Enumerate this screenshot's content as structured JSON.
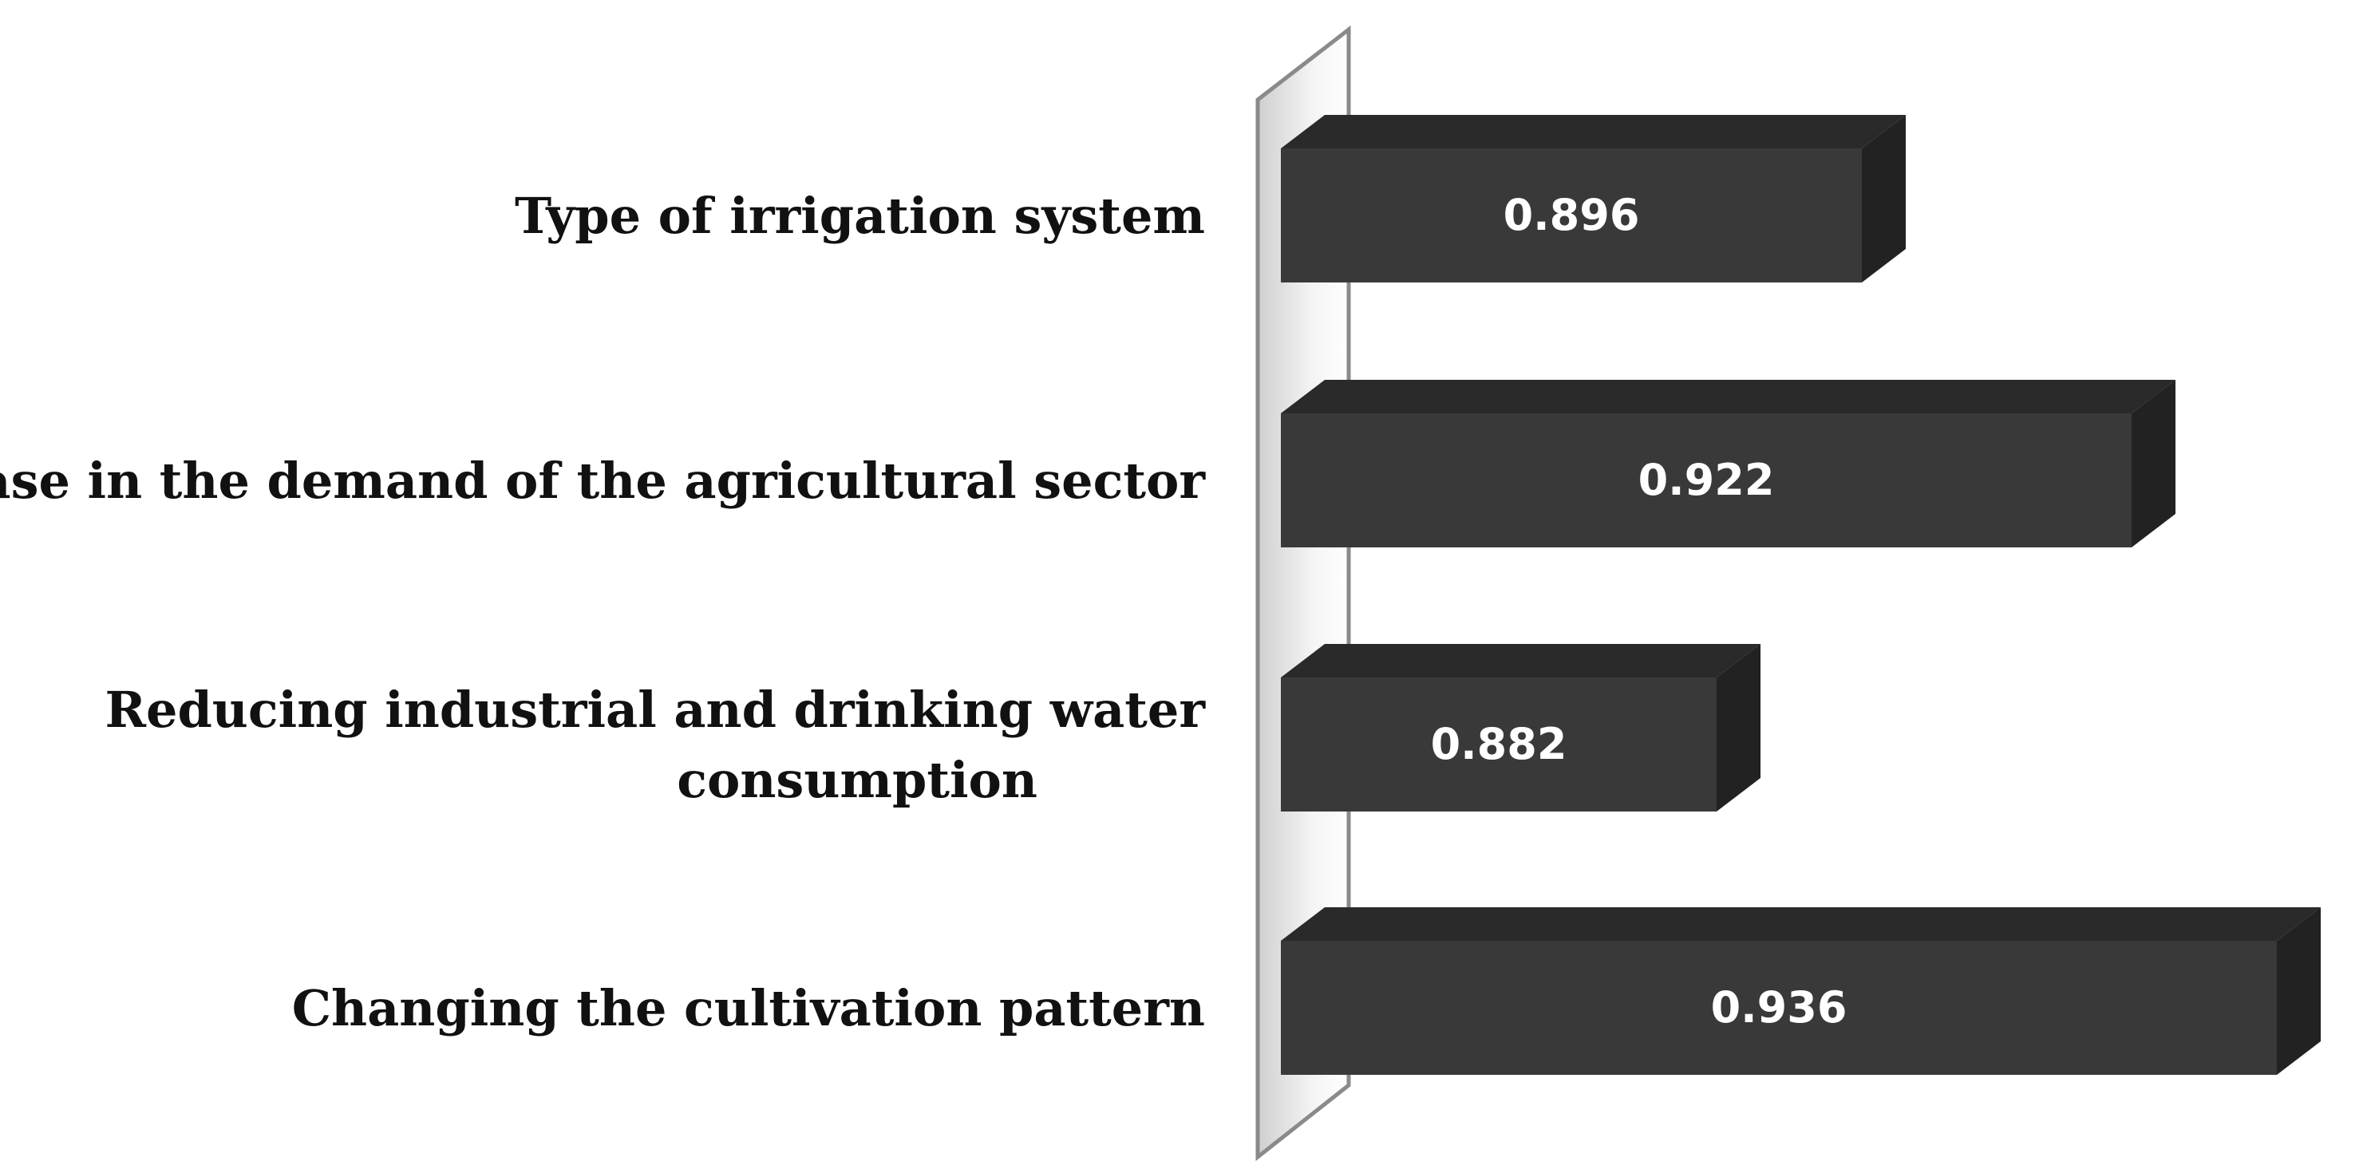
{
  "chart_data": {
    "type": "bar",
    "orientation": "horizontal",
    "title": "",
    "xlabel": "",
    "ylabel": "",
    "categories": [
      [
        "Type of irrigation system"
      ],
      [
        "Decrease in the demand of the agricultural sector"
      ],
      [
        "Reducing industrial and drinking water",
        "consumption"
      ],
      [
        "Changing the cultivation pattern"
      ]
    ],
    "values": [
      0.896,
      0.922,
      0.882,
      0.936
    ],
    "value_labels": [
      "0.896",
      "0.922",
      "0.882",
      "0.936"
    ],
    "xlim": [
      0.84,
      0.94
    ],
    "grid": false,
    "legend": "none",
    "colors": {
      "bar_front": "#3a3939",
      "bar_top": "#2b2a2a",
      "bar_side": "#232222",
      "wall_stroke": "#8a8a8a"
    }
  }
}
